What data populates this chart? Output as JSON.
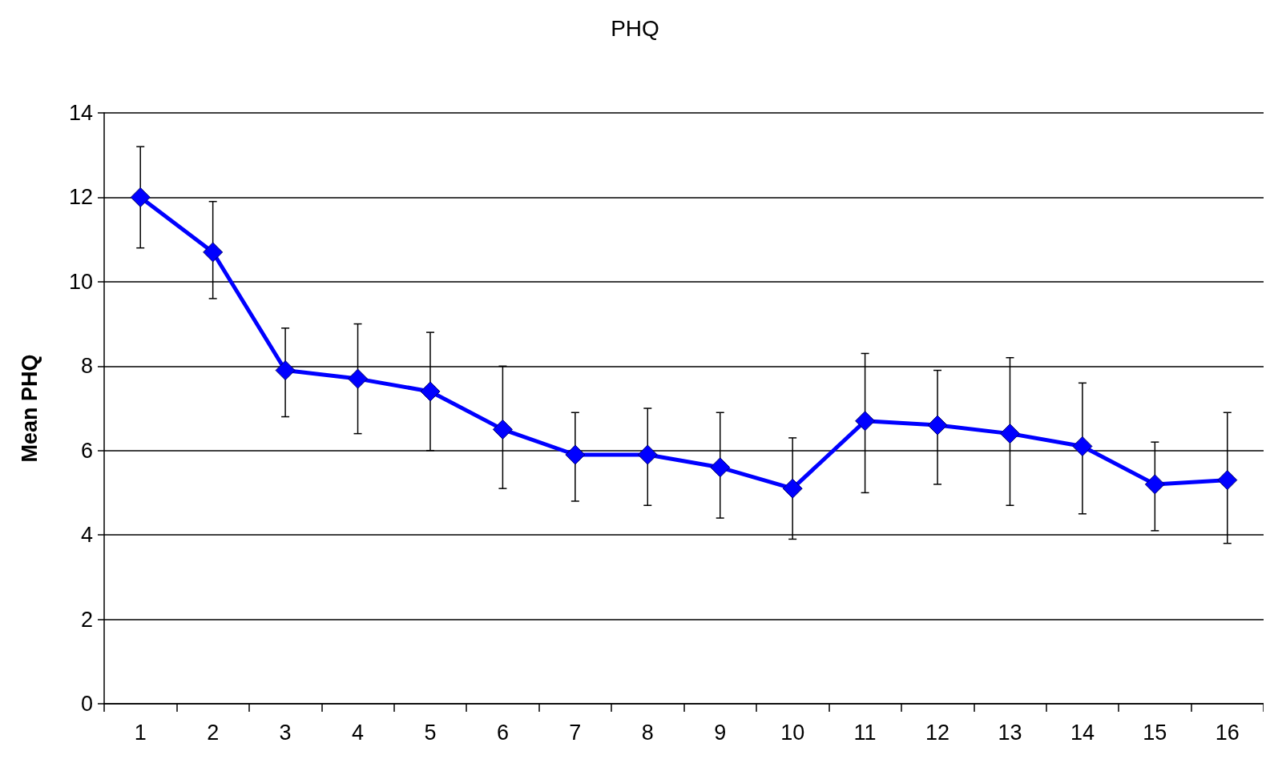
{
  "chart_data": {
    "type": "line",
    "title": "PHQ",
    "ylabel": "Mean PHQ",
    "categories": [
      "1",
      "2",
      "3",
      "4",
      "5",
      "6",
      "7",
      "8",
      "9",
      "10",
      "11",
      "12",
      "13",
      "14",
      "15",
      "16"
    ],
    "series": [
      {
        "color": "#0000ff",
        "values": [
          12.0,
          10.7,
          7.9,
          7.7,
          7.4,
          6.5,
          5.9,
          5.9,
          5.6,
          5.1,
          6.7,
          6.6,
          6.4,
          6.1,
          5.2,
          5.3
        ],
        "errors": [
          [
            10.8,
            13.2
          ],
          [
            9.6,
            11.9
          ],
          [
            6.8,
            8.9
          ],
          [
            6.4,
            9.0
          ],
          [
            6.0,
            8.8
          ],
          [
            5.1,
            8.0
          ],
          [
            4.8,
            6.9
          ],
          [
            4.7,
            7.0
          ],
          [
            4.4,
            6.9
          ],
          [
            3.9,
            6.3
          ],
          [
            5.0,
            8.3
          ],
          [
            5.2,
            7.9
          ],
          [
            4.7,
            8.2
          ],
          [
            4.5,
            7.6
          ],
          [
            4.1,
            6.2
          ],
          [
            3.8,
            6.9
          ]
        ]
      }
    ],
    "ylim": [
      0,
      14
    ],
    "yticks": [
      0,
      2,
      4,
      6,
      8,
      10,
      12,
      14
    ],
    "grid": "y",
    "marker": "diamond",
    "line_style": "solid"
  }
}
